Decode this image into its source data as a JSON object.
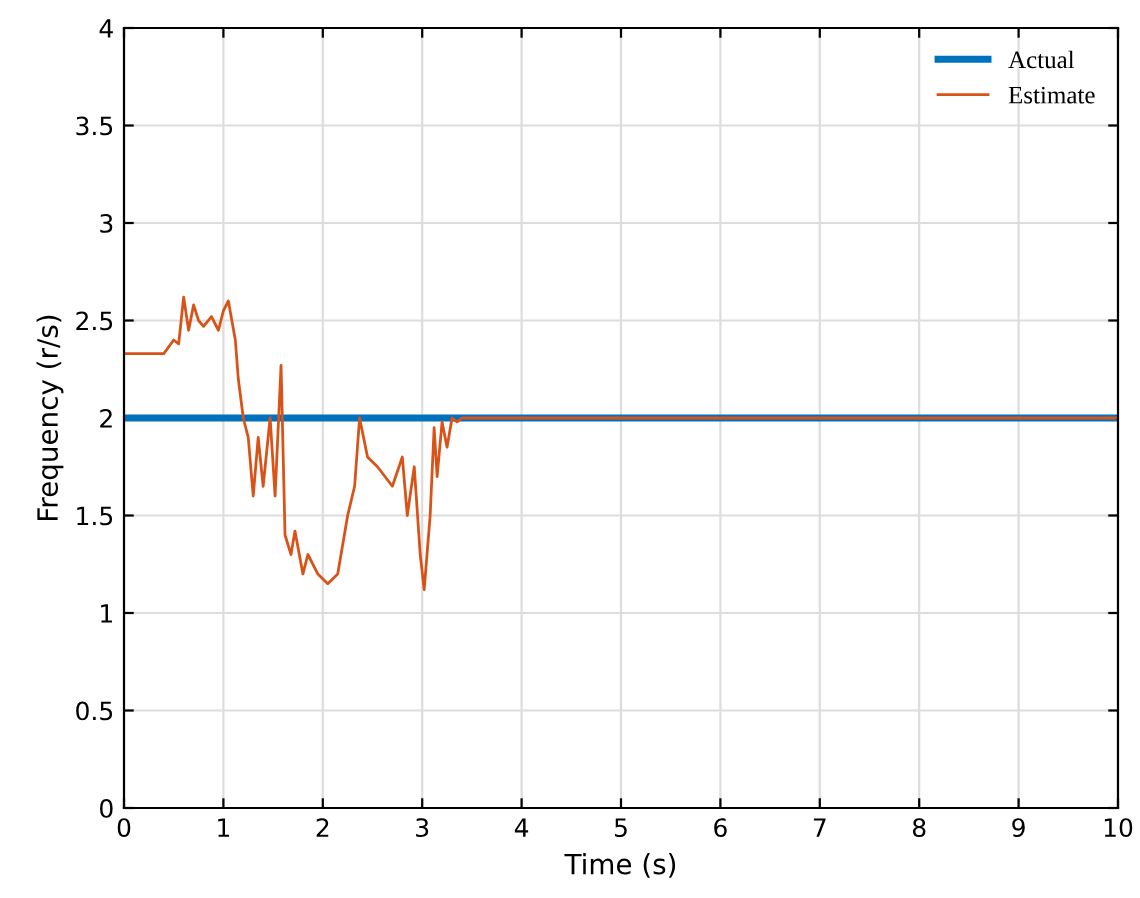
{
  "chart_data": {
    "type": "line",
    "xlabel": "Time (s)",
    "ylabel": "Frequency (r/s)",
    "xlim": [
      0,
      10
    ],
    "ylim": [
      0,
      4
    ],
    "xticks": [
      0,
      1,
      2,
      3,
      4,
      5,
      6,
      7,
      8,
      9,
      10
    ],
    "yticks": [
      0,
      0.5,
      1,
      1.5,
      2,
      2.5,
      3,
      3.5,
      4
    ],
    "grid": true,
    "legend": "top right",
    "series": [
      {
        "name": "Actual",
        "color": "#0072bd",
        "x": [
          0,
          10
        ],
        "values": [
          2,
          2
        ]
      },
      {
        "name": "Estimate",
        "color": "#d95319",
        "x": [
          0,
          0.4,
          0.5,
          0.55,
          0.6,
          0.65,
          0.7,
          0.75,
          0.8,
          0.88,
          0.95,
          1.0,
          1.05,
          1.12,
          1.15,
          1.2,
          1.25,
          1.3,
          1.35,
          1.4,
          1.47,
          1.52,
          1.58,
          1.62,
          1.68,
          1.72,
          1.8,
          1.85,
          1.95,
          2.05,
          2.15,
          2.25,
          2.32,
          2.37,
          2.45,
          2.55,
          2.7,
          2.8,
          2.85,
          2.92,
          2.98,
          3.02,
          3.08,
          3.12,
          3.15,
          3.2,
          3.25,
          3.3,
          3.35,
          3.4,
          10
        ],
        "values": [
          2.33,
          2.33,
          2.4,
          2.38,
          2.62,
          2.45,
          2.58,
          2.5,
          2.47,
          2.52,
          2.45,
          2.55,
          2.6,
          2.4,
          2.2,
          2.0,
          1.9,
          1.6,
          1.9,
          1.65,
          2.0,
          1.6,
          2.27,
          1.4,
          1.3,
          1.42,
          1.2,
          1.3,
          1.2,
          1.15,
          1.2,
          1.5,
          1.65,
          2.0,
          1.8,
          1.75,
          1.65,
          1.8,
          1.5,
          1.75,
          1.3,
          1.12,
          1.5,
          1.95,
          1.7,
          1.98,
          1.85,
          2.0,
          1.98,
          2.0,
          2.0
        ]
      }
    ]
  }
}
